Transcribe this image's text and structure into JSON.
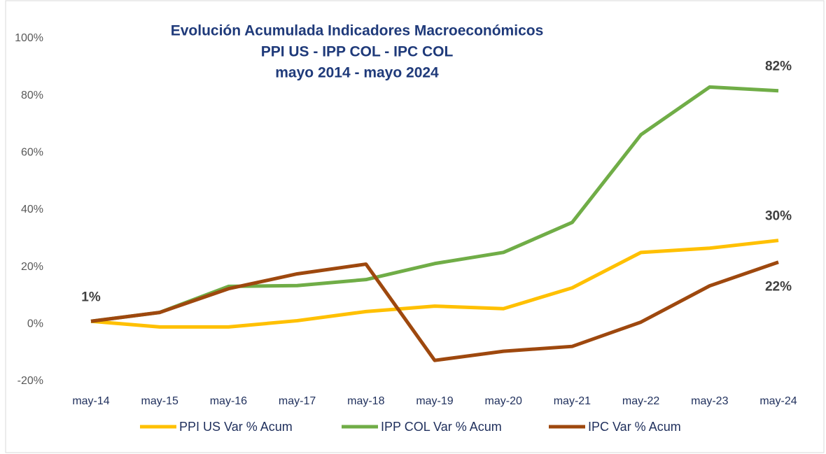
{
  "chart_data": {
    "type": "line",
    "title": [
      "Evolución Acumulada Indicadores Macroeconómicos",
      "PPI US - IPP COL - IPC COL",
      "mayo 2014 - mayo 2024"
    ],
    "categories": [
      "may-14",
      "may-15",
      "may-16",
      "may-17",
      "may-18",
      "may-19",
      "may-20",
      "may-21",
      "may-22",
      "may-23",
      "may-24"
    ],
    "series": [
      {
        "name": "PPI US Var %  Acum",
        "color": "#ffc000",
        "values": [
          1,
          -1,
          -1,
          1.2,
          4.4,
          6.3,
          5.4,
          12.7,
          25.1,
          26.6,
          29.3
        ],
        "value_labels": [
          null,
          null,
          null,
          null,
          null,
          null,
          null,
          null,
          null,
          null,
          "30%"
        ]
      },
      {
        "name": "IPP COL Var %  Acum",
        "color": "#70ad47",
        "values": [
          1,
          4.1,
          13.2,
          13.5,
          15.6,
          21.2,
          25.1,
          35.6,
          66.3,
          83,
          81.7
        ],
        "value_labels": [
          null,
          null,
          null,
          null,
          null,
          null,
          null,
          null,
          null,
          null,
          "82%"
        ]
      },
      {
        "name": "IPC Var %  Acum",
        "color": "#9e480e",
        "values": [
          1,
          4.1,
          12.4,
          17.6,
          21,
          -12.7,
          -9.5,
          -7.8,
          0.7,
          13.4,
          21.7
        ],
        "value_labels": [
          "1%",
          null,
          null,
          null,
          null,
          null,
          null,
          null,
          null,
          null,
          "22%"
        ]
      }
    ],
    "ylim": [
      -20,
      100
    ],
    "yticks": [
      {
        "value": -20,
        "label": "-20%"
      },
      {
        "value": 0,
        "label": "0%"
      },
      {
        "value": 20,
        "label": "20%"
      },
      {
        "value": 40,
        "label": "40%"
      },
      {
        "value": 60,
        "label": "60%"
      },
      {
        "value": 80,
        "label": "80%"
      },
      {
        "value": 100,
        "label": "100%"
      }
    ],
    "grid": false
  }
}
